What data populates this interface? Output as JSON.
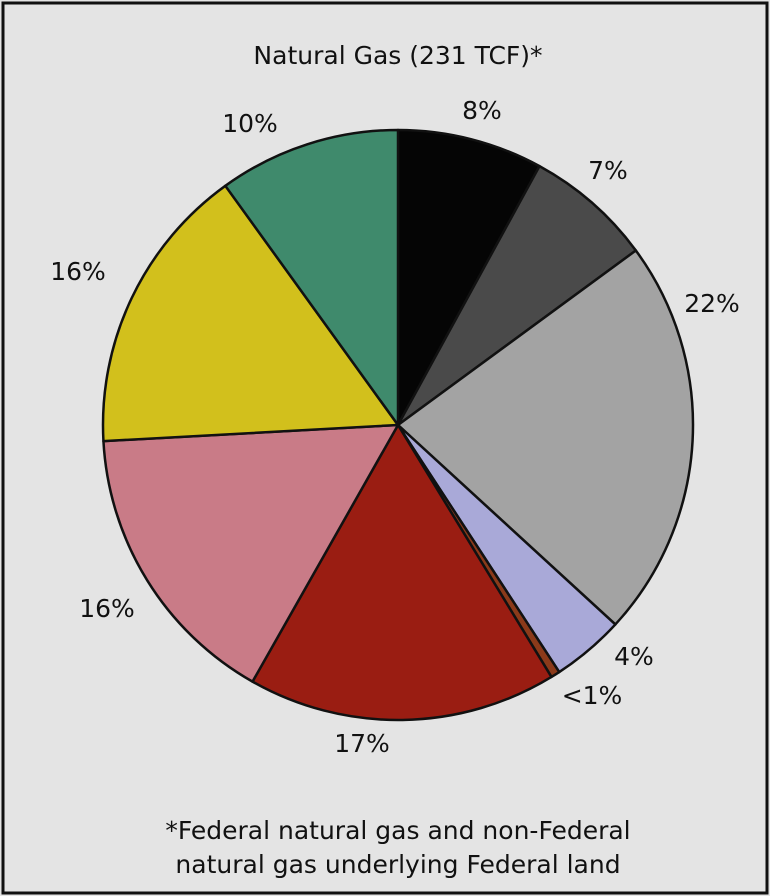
{
  "chart_data": {
    "type": "pie",
    "title": "Natural Gas (231 TCF)*",
    "categories": [
      null,
      null,
      null,
      null,
      null,
      null,
      null,
      null,
      null
    ],
    "values": [
      8,
      7,
      22,
      4,
      0.5,
      17,
      16,
      16,
      10
    ],
    "value_labels": [
      "8%",
      "7%",
      "22%",
      "4%",
      "<1%",
      "17%",
      "16%",
      "16%",
      "10%"
    ],
    "colors": [
      "#050505",
      "#4a4a4a",
      "#a3a3a3",
      "#a9a9d8",
      "#8b3a1a",
      "#9a1d12",
      "#c97b87",
      "#d2c01c",
      "#3f8a6c"
    ],
    "footnote": [
      "*Federal natural gas and non-Federal",
      "natural gas underlying Federal land"
    ]
  }
}
